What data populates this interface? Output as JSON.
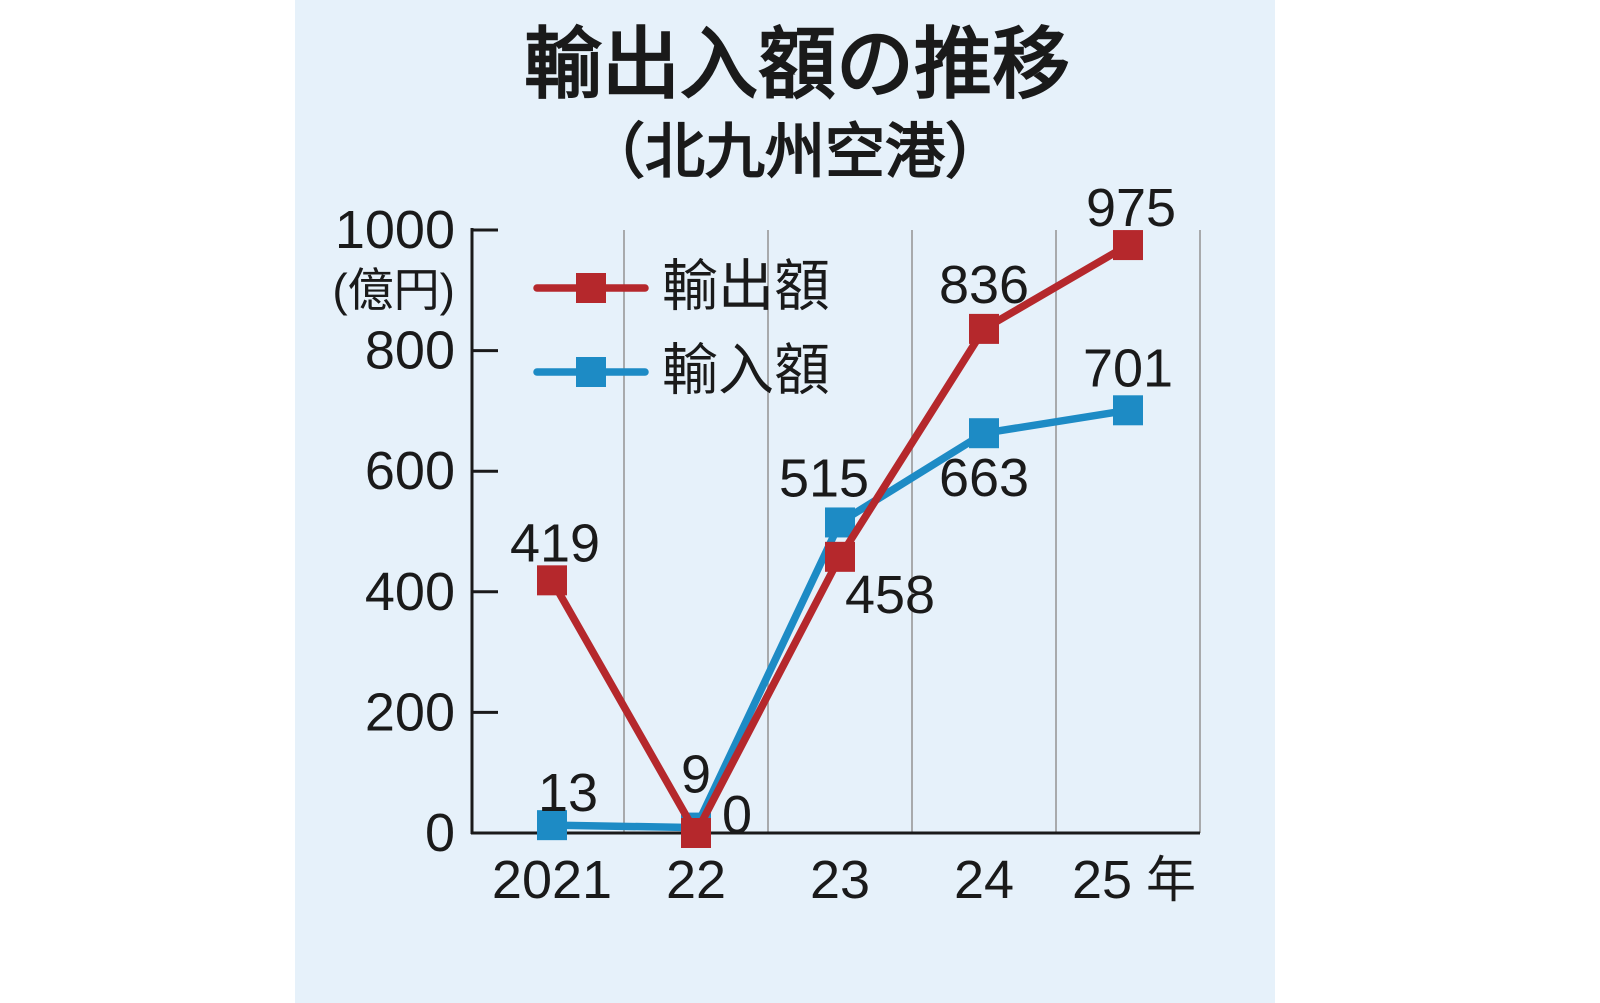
{
  "colors": {
    "page_background": "#ffffff",
    "panel_background": "#e6f1fa",
    "axis": "#1a1a1a",
    "grid": "#999999",
    "text": "#1a1a1a"
  },
  "chart_data": {
    "type": "line",
    "title": "輸出入額の推移",
    "subtitle": "（北九州空港）",
    "categories": [
      "2021",
      "22",
      "23",
      "24",
      "25"
    ],
    "x_unit": "年",
    "y_unit": "(億円)",
    "ylim": [
      0,
      1000
    ],
    "yticks": [
      0,
      200,
      400,
      600,
      800,
      1000
    ],
    "grid": {
      "x": true,
      "y": false
    },
    "legend_position": "top-left",
    "series": [
      {
        "name": "輸出額",
        "values": [
          419,
          0,
          458,
          836,
          975
        ],
        "color": "#b5282c"
      },
      {
        "name": "輸入額",
        "values": [
          13,
          9,
          515,
          663,
          701
        ],
        "color": "#1d8bc5"
      }
    ]
  }
}
